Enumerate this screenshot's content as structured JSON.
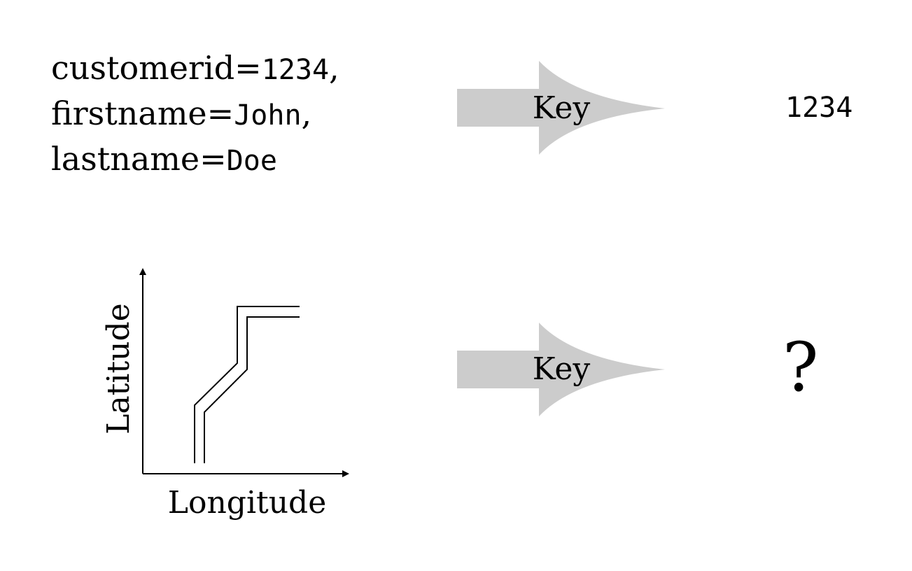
{
  "record": {
    "customerid_key": "customerid=",
    "customerid_value": "1234",
    "customerid_sep": ",",
    "firstname_key": "firstname=",
    "firstname_value": "John",
    "firstname_sep": ",",
    "lastname_key": "lastname=",
    "lastname_value": "Doe"
  },
  "arrows": {
    "top_label": "Key",
    "bottom_label": "Key",
    "fill_color": "#cccccc"
  },
  "results": {
    "top": "1234",
    "bottom": "?"
  },
  "plot": {
    "xlabel": "Longitude",
    "ylabel": "Latitude"
  }
}
